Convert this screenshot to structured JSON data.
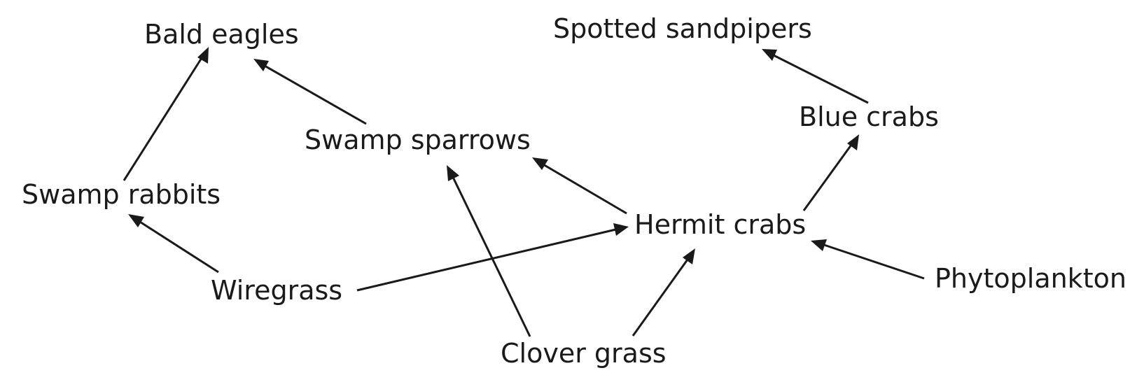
{
  "diagram": {
    "type": "food-web",
    "nodes": {
      "bald_eagles": "Bald eagles",
      "spotted_sandpipers": "Spotted sandpipers",
      "blue_crabs": "Blue crabs",
      "swamp_sparrows": "Swamp sparrows",
      "swamp_rabbits": "Swamp rabbits",
      "hermit_crabs": "Hermit crabs",
      "phytoplankton": "Phytoplankton",
      "wiregrass": "Wiregrass",
      "clover_grass": "Clover grass"
    },
    "edges": [
      {
        "from": "swamp_rabbits",
        "to": "bald_eagles"
      },
      {
        "from": "swamp_sparrows",
        "to": "bald_eagles"
      },
      {
        "from": "blue_crabs",
        "to": "spotted_sandpipers"
      },
      {
        "from": "hermit_crabs",
        "to": "blue_crabs"
      },
      {
        "from": "hermit_crabs",
        "to": "swamp_sparrows"
      },
      {
        "from": "wiregrass",
        "to": "swamp_rabbits"
      },
      {
        "from": "wiregrass",
        "to": "hermit_crabs"
      },
      {
        "from": "clover_grass",
        "to": "swamp_sparrows"
      },
      {
        "from": "clover_grass",
        "to": "hermit_crabs"
      },
      {
        "from": "phytoplankton",
        "to": "hermit_crabs"
      }
    ]
  }
}
